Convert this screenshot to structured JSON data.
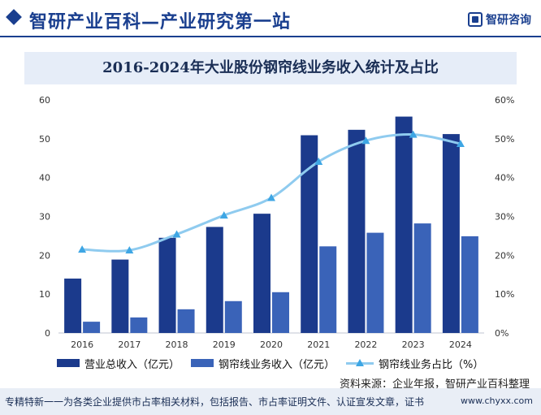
{
  "header": {
    "site_title": "智研产业百科—产业研究第一站",
    "logo_text": "智研咨询"
  },
  "chart_data": {
    "type": "bar",
    "title": "2016-2024年大业股份钢帘线业务收入统计及占比",
    "categories": [
      "2016",
      "2017",
      "2018",
      "2019",
      "2020",
      "2021",
      "2022",
      "2023",
      "2024"
    ],
    "series": [
      {
        "name": "营业总收入（亿元）",
        "type": "bar",
        "axis": "left",
        "color": "#1b3a8c",
        "values": [
          14.0,
          18.9,
          24.5,
          27.3,
          30.7,
          50.9,
          52.3,
          55.7,
          51.2
        ]
      },
      {
        "name": "钢帘线业务收入（亿元）",
        "type": "bar",
        "axis": "left",
        "color": "#3a63b8",
        "values": [
          2.9,
          4.0,
          6.1,
          8.2,
          10.5,
          22.3,
          25.8,
          28.2,
          24.9
        ]
      },
      {
        "name": "钢帘线业务占比（%）",
        "type": "line",
        "axis": "right",
        "color": "#8fcbef",
        "marker_color": "#3ea6e4",
        "values": [
          21.5,
          21.3,
          25.4,
          30.3,
          34.8,
          44.1,
          49.5,
          51.1,
          48.7
        ]
      }
    ],
    "y_left": {
      "min": 0,
      "max": 60,
      "ticks": [
        "0",
        "10",
        "20",
        "30",
        "40",
        "50",
        "60"
      ]
    },
    "y_right": {
      "min": 0,
      "max": 60,
      "ticks": [
        "0%",
        "10%",
        "20%",
        "30%",
        "40%",
        "50%",
        "60%"
      ]
    },
    "grid": false,
    "legend": "bottom"
  },
  "source": "资料来源：企业年报，智研产业百科整理",
  "footer": {
    "slogan": "专精特新一一为各类企业提供市占率相关材料，包括报告、市占率证明文件、认证宣发文章，证书",
    "url": "www.chyxx.com"
  }
}
